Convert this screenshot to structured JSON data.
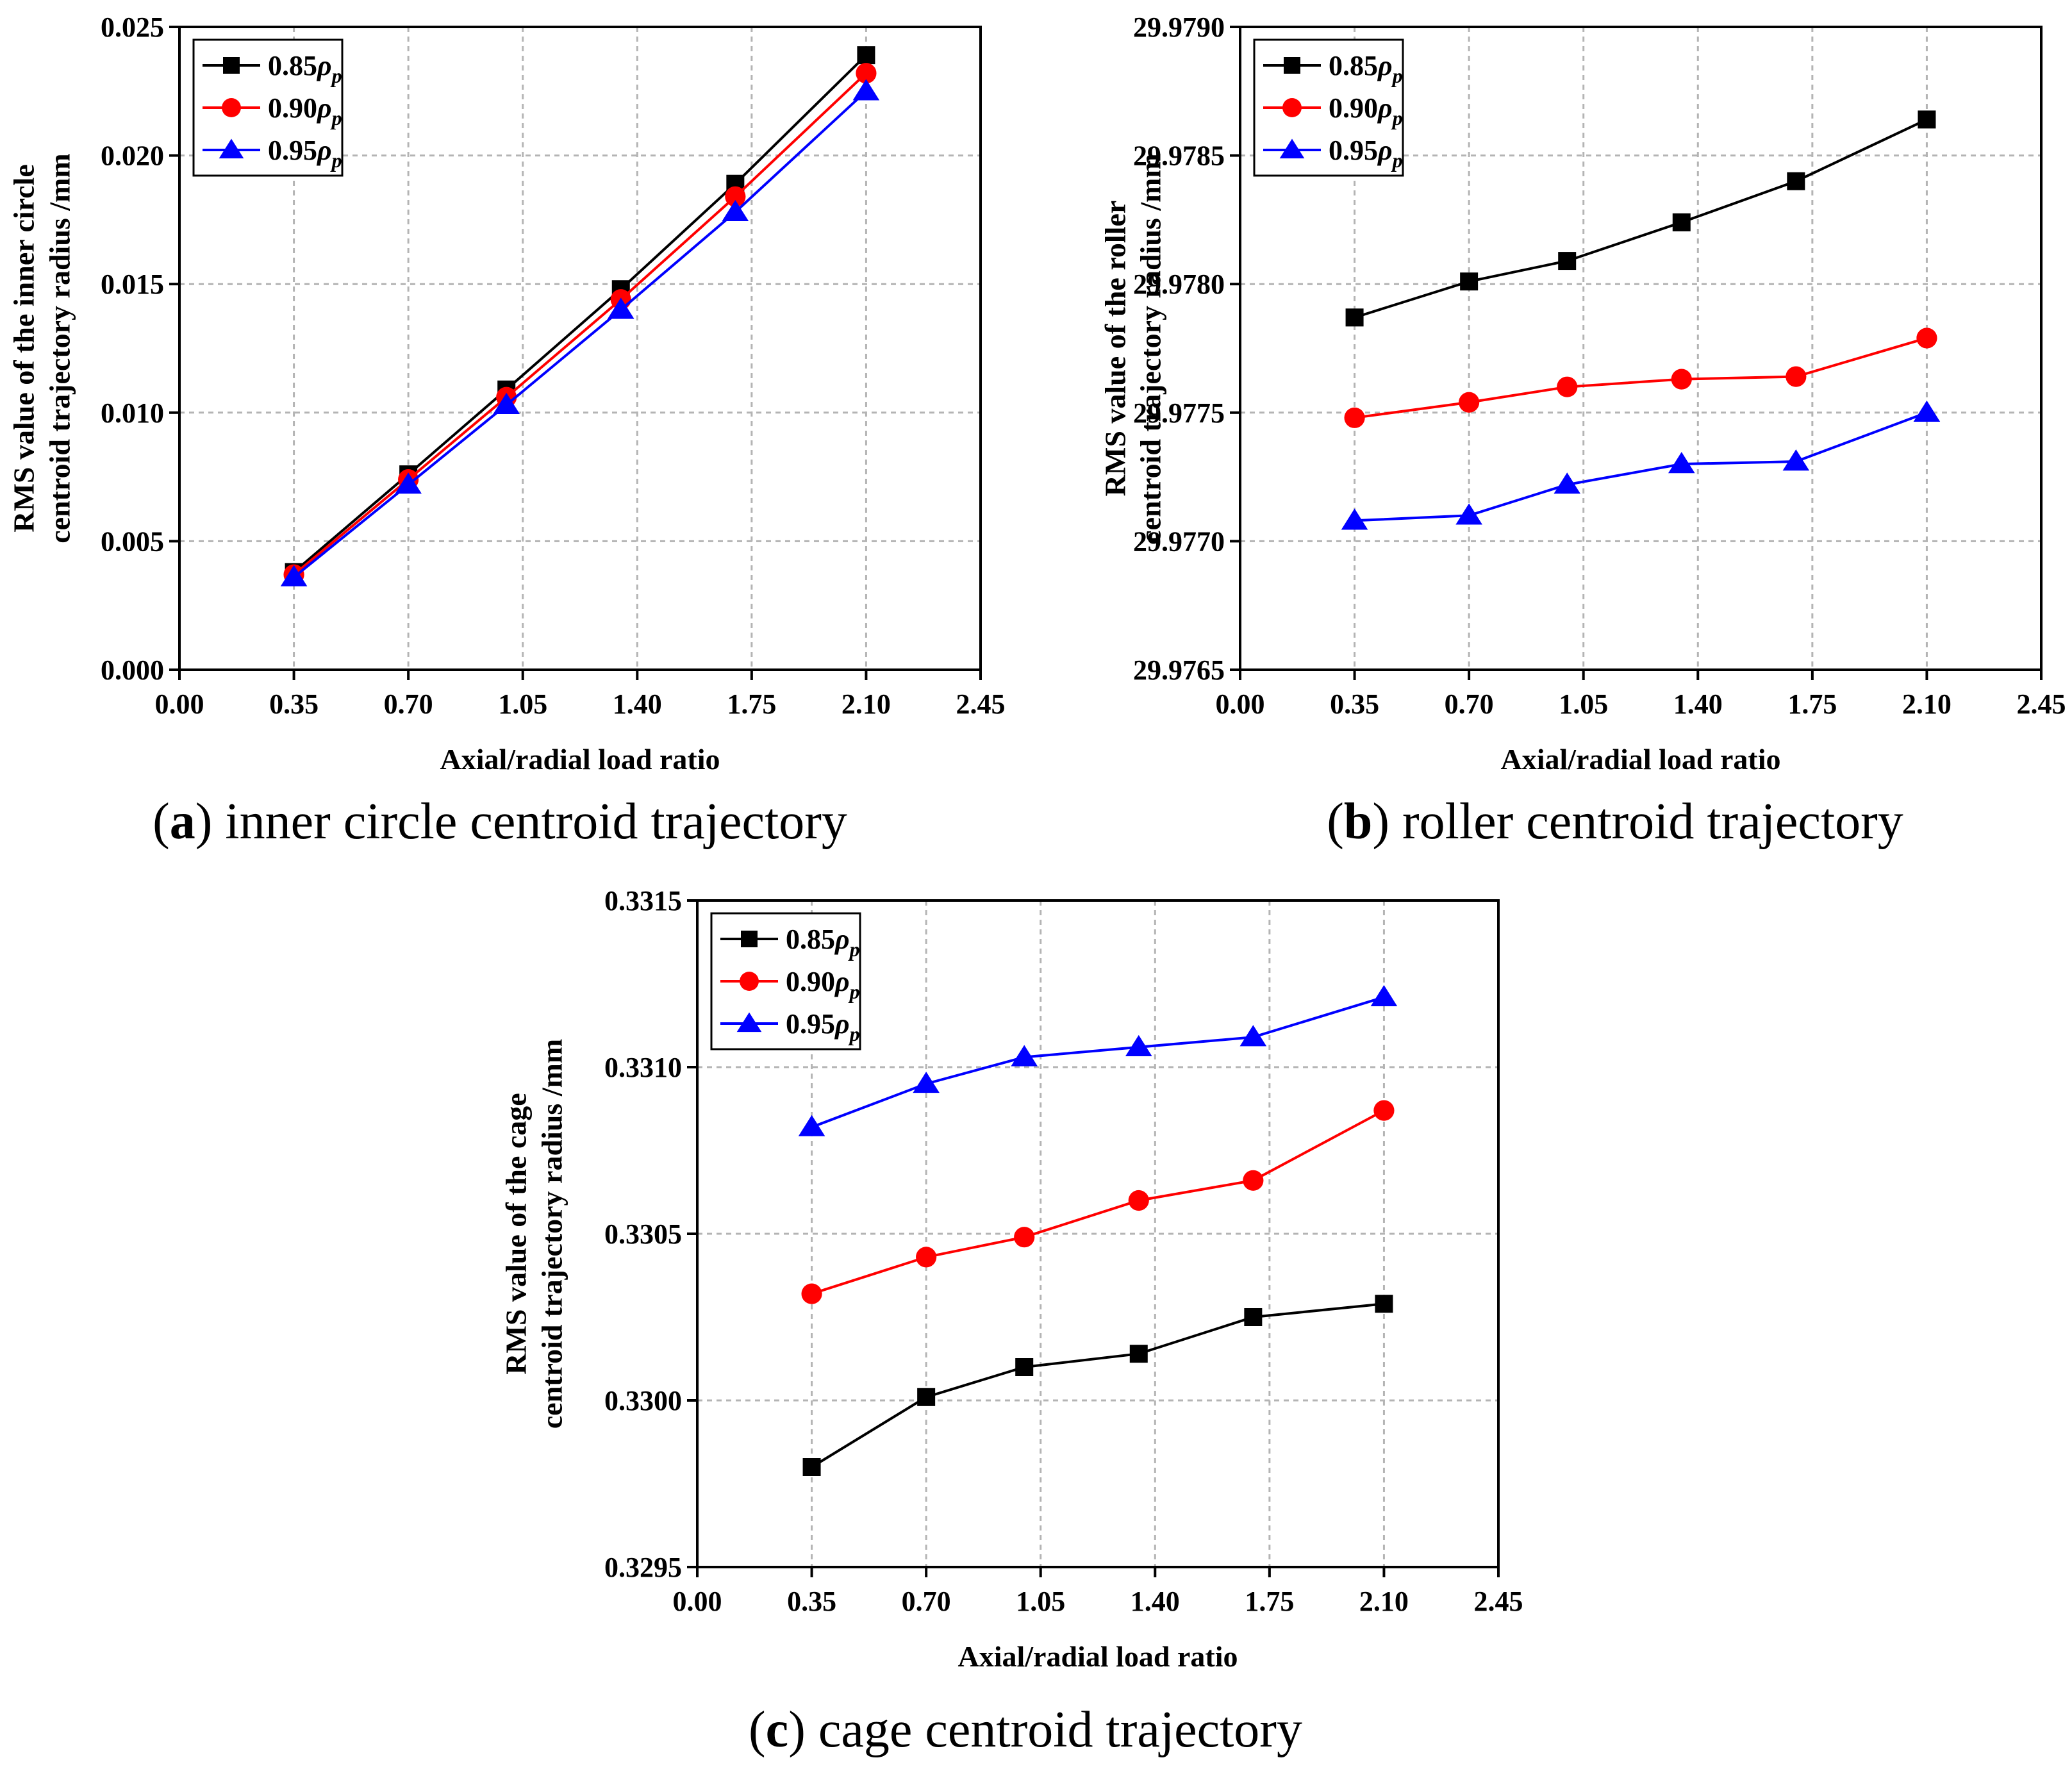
{
  "chart_data": [
    {
      "id": "a",
      "type": "line",
      "caption": {
        "letter": "a",
        "text": "inner circle centroid trajectory"
      },
      "xlabel": "Axial/radial load ratio",
      "ylabel": [
        "RMS value of the inner circle",
        "centroid trajectory radius /mm"
      ],
      "xlim": [
        0.0,
        2.45
      ],
      "ylim": [
        0.0,
        0.025
      ],
      "xticks": [
        "0.00",
        "0.35",
        "0.70",
        "1.05",
        "1.40",
        "1.75",
        "2.10",
        "2.45"
      ],
      "yticks": [
        "0.000",
        "0.005",
        "0.010",
        "0.015",
        "0.020",
        "0.025"
      ],
      "grid": true,
      "legend_position": "top-left",
      "x": [
        0.35,
        0.7,
        1.0,
        1.35,
        1.7,
        2.1
      ],
      "series": [
        {
          "name": "0.85",
          "sub": "p",
          "color": "#000000",
          "marker": "square",
          "values": [
            0.0038,
            0.0076,
            0.0109,
            0.0148,
            0.0189,
            0.0239
          ]
        },
        {
          "name": "0.90",
          "sub": "p",
          "color": "#ff0000",
          "marker": "circle",
          "values": [
            0.0037,
            0.0074,
            0.0106,
            0.0144,
            0.0184,
            0.0232
          ]
        },
        {
          "name": "0.95",
          "sub": "p",
          "color": "#0000ff",
          "marker": "triangle",
          "values": [
            0.0036,
            0.0072,
            0.0103,
            0.014,
            0.0178,
            0.0225
          ]
        }
      ]
    },
    {
      "id": "b",
      "type": "line",
      "caption": {
        "letter": "b",
        "text": "roller centroid trajectory"
      },
      "xlabel": "Axial/radial load ratio",
      "ylabel": [
        "RMS value of the roller",
        "centroid trajectory radius /mm"
      ],
      "xlim": [
        0.0,
        2.45
      ],
      "ylim": [
        29.9765,
        29.979
      ],
      "xticks": [
        "0.00",
        "0.35",
        "0.70",
        "1.05",
        "1.40",
        "1.75",
        "2.10",
        "2.45"
      ],
      "yticks": [
        "29.9765",
        "29.9770",
        "29.9775",
        "29.9780",
        "29.9785",
        "29.9790"
      ],
      "grid": true,
      "legend_position": "top-left",
      "x": [
        0.35,
        0.7,
        1.0,
        1.35,
        1.7,
        2.1
      ],
      "series": [
        {
          "name": "0.85",
          "sub": "p",
          "color": "#000000",
          "marker": "square",
          "values": [
            29.97787,
            29.97801,
            29.97809,
            29.97824,
            29.9784,
            29.97864
          ]
        },
        {
          "name": "0.90",
          "sub": "p",
          "color": "#ff0000",
          "marker": "circle",
          "values": [
            29.97748,
            29.97754,
            29.9776,
            29.97763,
            29.97764,
            29.97779
          ]
        },
        {
          "name": "0.95",
          "sub": "p",
          "color": "#0000ff",
          "marker": "triangle",
          "values": [
            29.97708,
            29.9771,
            29.97722,
            29.9773,
            29.97731,
            29.9775
          ]
        }
      ]
    },
    {
      "id": "c",
      "type": "line",
      "caption": {
        "letter": "c",
        "text": "cage centroid trajectory"
      },
      "xlabel": "Axial/radial load ratio",
      "ylabel": [
        "RMS value of the cage",
        "centroid trajectory radius /mm"
      ],
      "xlim": [
        0.0,
        2.45
      ],
      "ylim": [
        0.3295,
        0.3315
      ],
      "xticks": [
        "0.00",
        "0.35",
        "0.70",
        "1.05",
        "1.40",
        "1.75",
        "2.10",
        "2.45"
      ],
      "yticks": [
        "0.3295",
        "0.3300",
        "0.3305",
        "0.3310",
        "0.3315"
      ],
      "grid": true,
      "legend_position": "top-left",
      "x": [
        0.35,
        0.7,
        1.0,
        1.35,
        1.7,
        2.1
      ],
      "series": [
        {
          "name": "0.85",
          "sub": "p",
          "color": "#000000",
          "marker": "square",
          "values": [
            0.3298,
            0.33001,
            0.3301,
            0.33014,
            0.33025,
            0.33029
          ]
        },
        {
          "name": "0.90",
          "sub": "p",
          "color": "#ff0000",
          "marker": "circle",
          "values": [
            0.33032,
            0.33043,
            0.33049,
            0.3306,
            0.33066,
            0.33087
          ]
        },
        {
          "name": "0.95",
          "sub": "p",
          "color": "#0000ff",
          "marker": "triangle",
          "values": [
            0.33082,
            0.33095,
            0.33103,
            0.33106,
            0.33109,
            0.33121
          ]
        }
      ]
    }
  ]
}
